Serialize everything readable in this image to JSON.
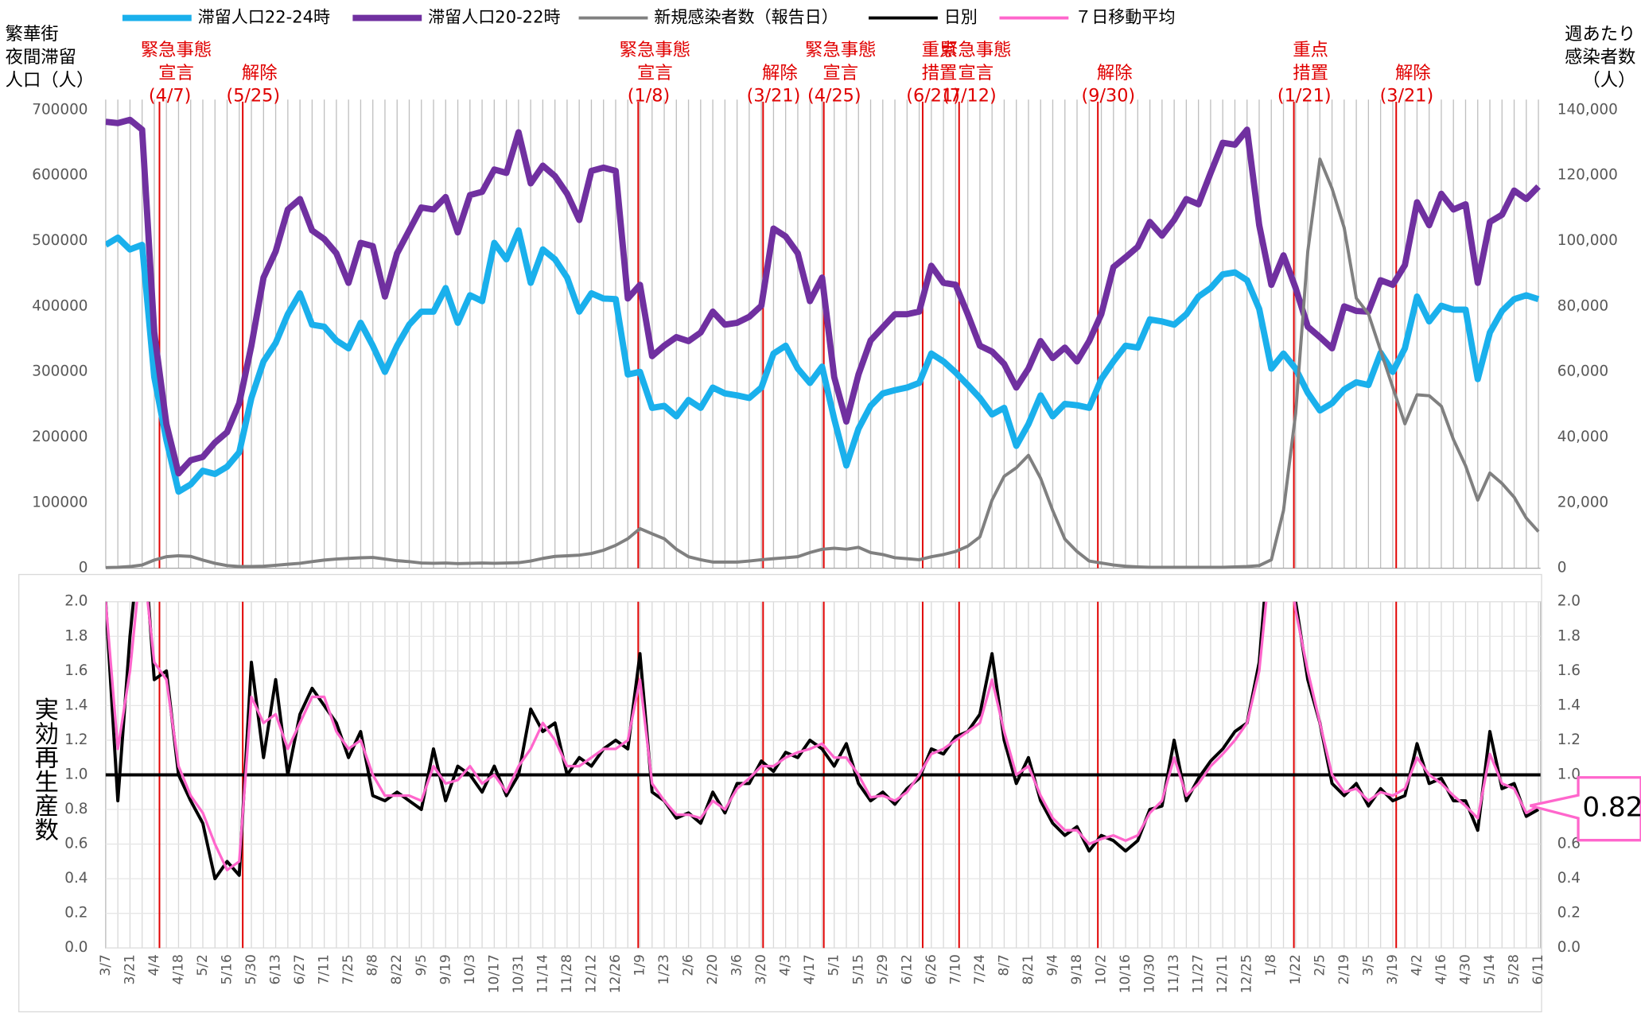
{
  "chart_data": [
    {
      "type": "line",
      "y_title": [
        "繁華街",
        "夜間滞留",
        "人口（人）"
      ],
      "y2_title": [
        "週あたり",
        "感染者数",
        "（人）"
      ],
      "series": [
        {
          "name": "滞留人口22-24時",
          "color": "#1ab0ec",
          "values": [
            494000,
            505000,
            487000,
            494000,
            292000,
            196000,
            117000,
            128000,
            149000,
            144000,
            155000,
            177000,
            260000,
            316000,
            344000,
            388000,
            420000,
            372000,
            369000,
            348000,
            336000,
            375000,
            340000,
            300000,
            340000,
            372000,
            392000,
            392000,
            428000,
            375000,
            417000,
            408000,
            497000,
            472000,
            516000,
            436000,
            487000,
            472000,
            444000,
            392000,
            420000,
            412000,
            411000,
            296000,
            300000,
            245000,
            248000,
            232000,
            257000,
            245000,
            276000,
            267000,
            264000,
            260000,
            276000,
            328000,
            340000,
            305000,
            283000,
            308000,
            228000,
            157000,
            213000,
            248000,
            267000,
            272000,
            276000,
            283000,
            328000,
            316000,
            299000,
            280000,
            260000,
            235000,
            245000,
            187000,
            220000,
            264000,
            232000,
            251000,
            249000,
            245000,
            289000,
            316000,
            340000,
            337000,
            380000,
            377000,
            372000,
            388000,
            415000,
            428000,
            449000,
            452000,
            440000,
            396000,
            305000,
            328000,
            305000,
            268000,
            241000,
            252000,
            273000,
            284000,
            280000,
            329000,
            300000,
            336000,
            415000,
            377000,
            401000,
            395000,
            395000,
            289000,
            360000,
            393000,
            411000,
            417000,
            411000
          ]
        },
        {
          "name": "滞留人口20-22時",
          "color": "#7030a0",
          "values": [
            682000,
            680000,
            685000,
            670000,
            360000,
            220000,
            145000,
            165000,
            170000,
            192000,
            208000,
            252000,
            340000,
            444000,
            484000,
            548000,
            564000,
            516000,
            503000,
            481000,
            436000,
            497000,
            492000,
            415000,
            481000,
            516000,
            551000,
            548000,
            567000,
            513000,
            570000,
            575000,
            609000,
            604000,
            666000,
            588000,
            615000,
            599000,
            572000,
            532000,
            607000,
            612000,
            607000,
            412000,
            433000,
            324000,
            340000,
            353000,
            347000,
            360000,
            392000,
            372000,
            375000,
            384000,
            401000,
            519000,
            507000,
            481000,
            408000,
            444000,
            292000,
            224000,
            296000,
            348000,
            368000,
            388000,
            388000,
            392000,
            462000,
            436000,
            433000,
            388000,
            340000,
            331000,
            312000,
            276000,
            305000,
            347000,
            321000,
            337000,
            316000,
            347000,
            388000,
            460000,
            475000,
            491000,
            529000,
            508000,
            532000,
            564000,
            556000,
            604000,
            650000,
            647000,
            670000,
            524000,
            433000,
            478000,
            428000,
            369000,
            353000,
            336000,
            400000,
            393000,
            392000,
            440000,
            433000,
            463000,
            559000,
            524000,
            572000,
            548000,
            556000,
            436000,
            529000,
            540000,
            577000,
            564000,
            583000
          ]
        },
        {
          "name": "新規感染者数（報告日）",
          "color": "#808080",
          "axis": "y2",
          "values": [
            200,
            300,
            500,
            1000,
            2500,
            3500,
            3800,
            3600,
            2500,
            1500,
            800,
            500,
            500,
            600,
            900,
            1200,
            1500,
            2000,
            2500,
            2800,
            3000,
            3200,
            3300,
            2800,
            2300,
            2000,
            1600,
            1500,
            1600,
            1400,
            1500,
            1600,
            1500,
            1600,
            1700,
            2200,
            3000,
            3600,
            3800,
            4000,
            4500,
            5500,
            7000,
            9000,
            12100,
            10500,
            9000,
            5800,
            3500,
            2600,
            1900,
            1900,
            1900,
            2200,
            2600,
            2900,
            3200,
            3500,
            4800,
            5800,
            6100,
            5800,
            6400,
            4800,
            4200,
            3200,
            2900,
            2600,
            3500,
            4200,
            5100,
            6700,
            9600,
            20800,
            28100,
            30700,
            34500,
            27500,
            17600,
            8900,
            5100,
            2200,
            1600,
            1000,
            600,
            400,
            300,
            300,
            300,
            300,
            300,
            300,
            300,
            400,
            500,
            800,
            2600,
            17600,
            47300,
            96800,
            125000,
            116000,
            104000,
            82500,
            77700,
            66500,
            55300,
            44100,
            53000,
            52700,
            49500,
            39300,
            31300,
            20800,
            29100,
            25900,
            21700,
            15300,
            11200
          ]
        }
      ],
      "ylim": [
        0,
        700000
      ],
      "yticks": [
        0,
        100000,
        200000,
        300000,
        400000,
        500000,
        600000,
        700000
      ],
      "y2lim": [
        0,
        140000
      ],
      "y2ticks": [
        0,
        {
          "value": 20000,
          "label": "20,000"
        },
        {
          "value": 40000,
          "label": "40,000"
        },
        {
          "value": 60000,
          "label": "60,000"
        },
        {
          "value": 80000,
          "label": "80,000"
        },
        {
          "value": 100000,
          "label": "100,000"
        },
        {
          "value": 120000,
          "label": "120,000"
        },
        {
          "value": 140000,
          "label": "140,000"
        }
      ],
      "grid": true,
      "event_color": "#e00000",
      "events": [
        {
          "label": [
            "緊急事態",
            "宣言"
          ],
          "date": "(4/7)"
        },
        {
          "label": [
            "解除"
          ],
          "date": "(5/25)"
        },
        {
          "label": [
            "緊急事態",
            "宣言"
          ],
          "date": "(1/8)"
        },
        {
          "label": [
            "解除"
          ],
          "date": "(3/21)"
        },
        {
          "label": [
            "緊急事態",
            "宣言"
          ],
          "date": "(4/25)"
        },
        {
          "label": [
            "重点",
            "措置"
          ],
          "date": "(6/21)"
        },
        {
          "label": [
            "緊急事態",
            "宣言"
          ],
          "date": "(7/12)"
        },
        {
          "label": [
            "解除"
          ],
          "date": "(9/30)"
        },
        {
          "label": [
            "重点",
            "措置"
          ],
          "date": "(1/21)"
        },
        {
          "label": [
            "解除"
          ],
          "date": "(3/21)"
        }
      ]
    },
    {
      "type": "line",
      "y_title": "実効再生産数",
      "categories": [
        "3/7",
        null,
        "3/21",
        null,
        "4/4",
        null,
        "4/18",
        null,
        "5/2",
        null,
        "5/16",
        null,
        "5/30",
        null,
        "6/13",
        null,
        "6/27",
        null,
        "7/11",
        null,
        "7/25",
        null,
        "8/8",
        null,
        "8/22",
        null,
        "9/5",
        null,
        "9/19",
        null,
        "10/3",
        null,
        "10/17",
        null,
        "10/31",
        null,
        "11/14",
        null,
        "11/28",
        null,
        "12/12",
        null,
        "12/26",
        null,
        "1/9",
        null,
        "1/23",
        null,
        "2/6",
        null,
        "2/20",
        null,
        "3/6",
        null,
        "3/20",
        null,
        "4/3",
        null,
        "4/17",
        null,
        "5/1",
        null,
        "5/15",
        null,
        "5/29",
        null,
        "6/12",
        null,
        "6/26",
        null,
        "7/10",
        null,
        "7/24",
        null,
        "8/7",
        null,
        "8/21",
        null,
        "9/4",
        null,
        "9/18",
        null,
        "10/2",
        null,
        "10/16",
        null,
        "10/30",
        null,
        "11/13",
        null,
        "11/27",
        null,
        "12/11",
        null,
        "12/25",
        null,
        "1/8",
        null,
        "1/22",
        null,
        "2/5",
        null,
        "2/19",
        null,
        "3/5",
        null,
        "3/19",
        null,
        "4/2",
        null,
        "4/16",
        null,
        "4/30",
        null,
        "5/14",
        null,
        "5/28",
        null,
        "6/11"
      ],
      "series": [
        {
          "name": "日別",
          "color": "#000000",
          "values": [
            2.0,
            0.85,
            1.8,
            2.5,
            1.55,
            1.6,
            1.0,
            0.85,
            0.72,
            0.4,
            0.5,
            0.42,
            1.65,
            1.1,
            1.55,
            1.0,
            1.35,
            1.5,
            1.4,
            1.3,
            1.1,
            1.25,
            0.88,
            0.85,
            0.9,
            0.85,
            0.8,
            1.15,
            0.85,
            1.05,
            1.0,
            0.9,
            1.05,
            0.88,
            1.0,
            1.38,
            1.25,
            1.3,
            1.0,
            1.1,
            1.05,
            1.15,
            1.2,
            1.15,
            1.7,
            0.9,
            0.85,
            0.75,
            0.78,
            0.72,
            0.9,
            0.78,
            0.95,
            0.95,
            1.08,
            1.02,
            1.13,
            1.1,
            1.2,
            1.15,
            1.05,
            1.18,
            0.95,
            0.85,
            0.9,
            0.83,
            0.92,
            0.98,
            1.15,
            1.12,
            1.22,
            1.25,
            1.35,
            1.7,
            1.2,
            0.95,
            1.1,
            0.85,
            0.72,
            0.65,
            0.7,
            0.56,
            0.65,
            0.62,
            0.56,
            0.62,
            0.8,
            0.82,
            1.2,
            0.85,
            0.98,
            1.08,
            1.15,
            1.25,
            1.3,
            1.65,
            2.5,
            2.5,
            2.0,
            1.55,
            1.3,
            0.95,
            0.88,
            0.95,
            0.82,
            0.92,
            0.85,
            0.88,
            1.18,
            0.95,
            0.98,
            0.85,
            0.85,
            0.68,
            1.25,
            0.92,
            0.95,
            0.76,
            0.8
          ]
        },
        {
          "name": "７日移動平均",
          "color": "#ff66cc",
          "values": [
            2.0,
            1.15,
            1.6,
            2.3,
            1.65,
            1.55,
            1.05,
            0.88,
            0.78,
            0.6,
            0.45,
            0.5,
            1.45,
            1.3,
            1.35,
            1.15,
            1.3,
            1.45,
            1.45,
            1.25,
            1.15,
            1.2,
            1.0,
            0.88,
            0.88,
            0.88,
            0.85,
            1.05,
            0.95,
            0.97,
            1.05,
            0.95,
            1.0,
            0.9,
            1.05,
            1.15,
            1.3,
            1.2,
            1.05,
            1.05,
            1.1,
            1.15,
            1.15,
            1.2,
            1.55,
            0.95,
            0.85,
            0.77,
            0.77,
            0.75,
            0.85,
            0.8,
            0.92,
            0.98,
            1.05,
            1.05,
            1.1,
            1.13,
            1.15,
            1.18,
            1.1,
            1.1,
            1.0,
            0.87,
            0.88,
            0.85,
            0.9,
            1.0,
            1.12,
            1.15,
            1.2,
            1.25,
            1.3,
            1.55,
            1.25,
            1.0,
            1.05,
            0.88,
            0.75,
            0.68,
            0.68,
            0.6,
            0.63,
            0.65,
            0.62,
            0.65,
            0.78,
            0.85,
            1.1,
            0.88,
            0.95,
            1.05,
            1.12,
            1.2,
            1.3,
            1.6,
            2.3,
            2.5,
            1.95,
            1.6,
            1.3,
            1.0,
            0.9,
            0.92,
            0.85,
            0.9,
            0.88,
            0.92,
            1.1,
            1.0,
            0.95,
            0.88,
            0.82,
            0.75,
            1.12,
            0.95,
            0.92,
            0.78,
            0.82
          ]
        }
      ],
      "ylim": [
        0,
        2
      ],
      "yticks": [
        {
          "value": 0,
          "label": "0.0"
        },
        {
          "value": 0.2,
          "label": "0.2"
        },
        {
          "value": 0.4,
          "label": "0.4"
        },
        {
          "value": 0.6,
          "label": "0.6"
        },
        {
          "value": 0.8,
          "label": "0.8"
        },
        {
          "value": 1,
          "label": "1.0"
        },
        {
          "value": 1.2,
          "label": "1.2"
        },
        {
          "value": 1.4,
          "label": "1.4"
        },
        {
          "value": 1.6,
          "label": "1.6"
        },
        {
          "value": 1.8,
          "label": "1.8"
        },
        {
          "value": 2,
          "label": "2.0"
        }
      ],
      "grid": true,
      "reference_line": 1,
      "callout": "0.82"
    }
  ]
}
